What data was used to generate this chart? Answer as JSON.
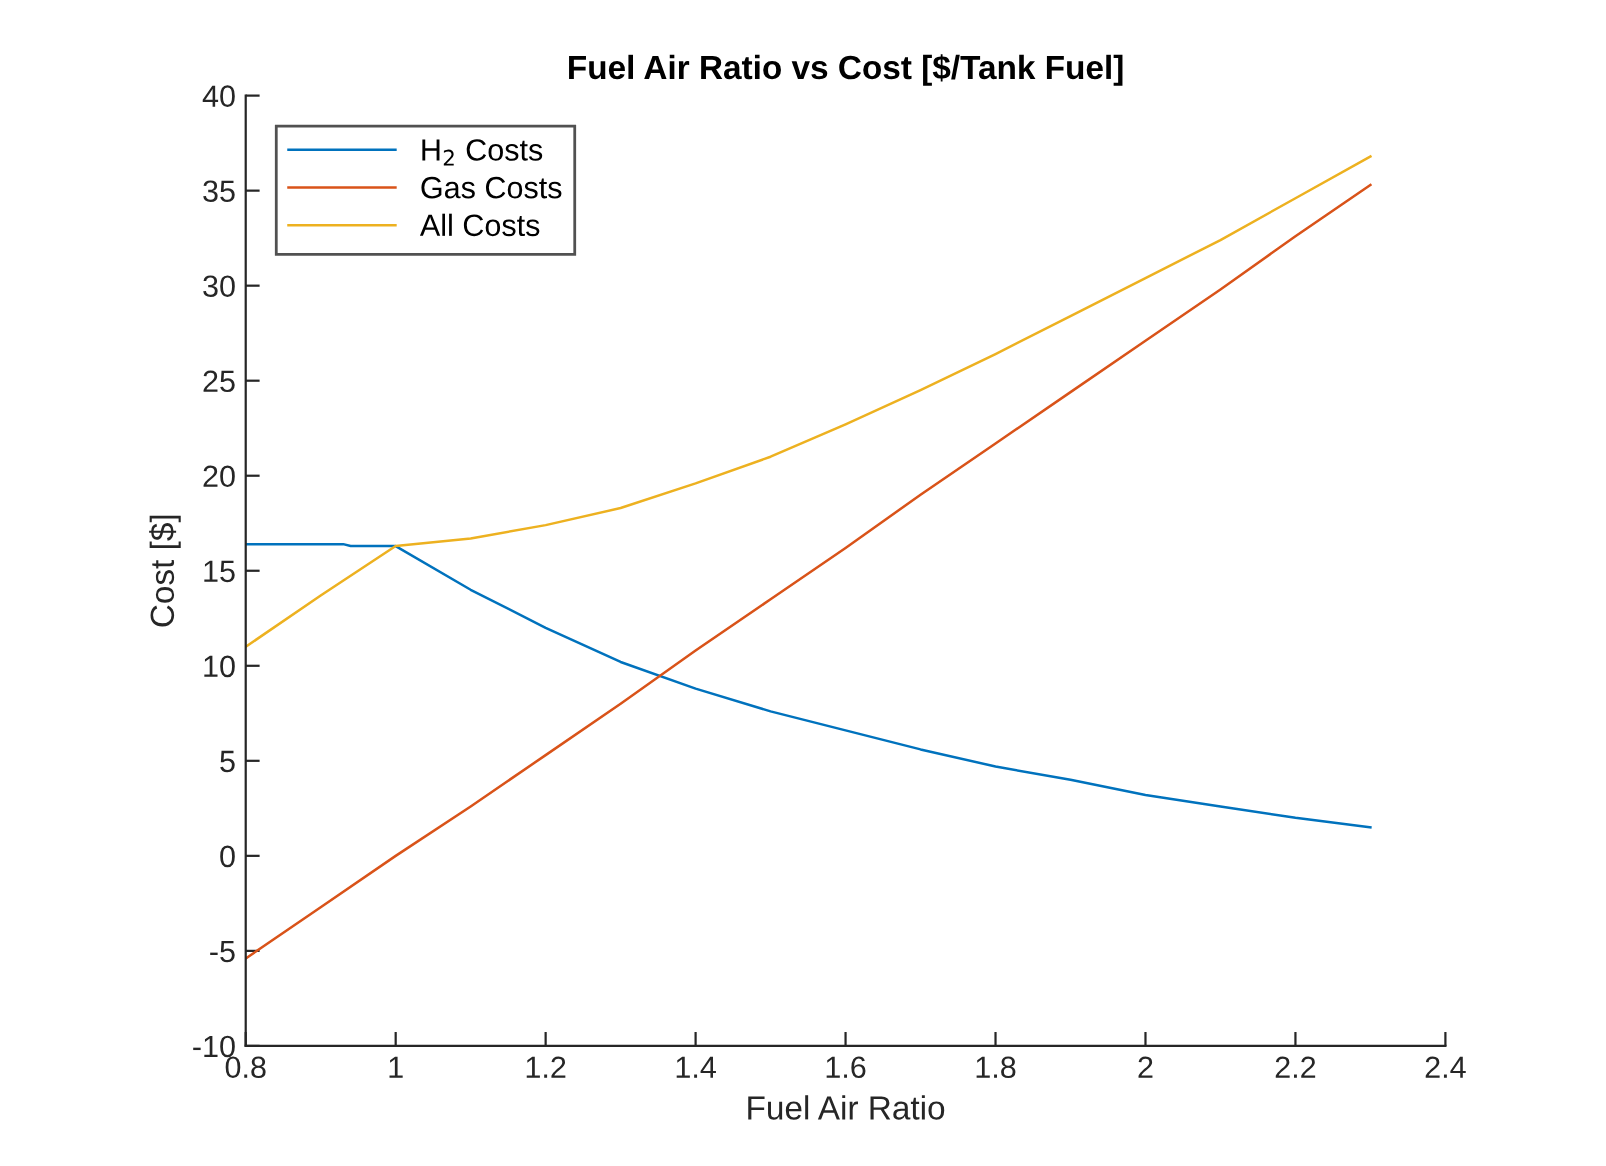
{
  "chart_data": {
    "type": "line",
    "title": "Fuel Air Ratio vs Cost [$/Tank Fuel]",
    "xlabel": "Fuel Air Ratio",
    "ylabel": "Cost [$]",
    "xlim": [
      0.8,
      2.4
    ],
    "xticks": [
      0.8,
      1,
      1.2,
      1.4,
      1.6,
      1.8,
      2,
      2.2,
      2.4
    ],
    "ylim": [
      -10,
      40
    ],
    "yticks": [
      -10,
      -5,
      0,
      5,
      10,
      15,
      20,
      25,
      30,
      35,
      40
    ],
    "grid": false,
    "legend": "top left",
    "marker": "none",
    "line_style": "solid",
    "series": [
      {
        "name": "H$_{2}$ Costs",
        "color": "#0072bd",
        "x": [
          0.8,
          0.93,
          0.94,
          1.0,
          1.1,
          1.2,
          1.3,
          1.4,
          1.5,
          1.6,
          1.7,
          1.8,
          1.9,
          2.0,
          2.1,
          2.2,
          2.3
        ],
        "values": [
          16.4,
          16.4,
          16.3,
          16.3,
          14.0,
          12.0,
          10.2,
          8.8,
          7.6,
          6.6,
          5.6,
          4.7,
          4.0,
          3.2,
          2.6,
          2.0,
          1.5
        ]
      },
      {
        "name": "Gas Costs",
        "color": "#d95319",
        "x": [
          0.8,
          0.9,
          1.0,
          1.1,
          1.2,
          1.3,
          1.4,
          1.5,
          1.6,
          1.7,
          1.8,
          1.9,
          2.0,
          2.1,
          2.2,
          2.3
        ],
        "values": [
          -5.4,
          -2.7,
          0,
          2.6,
          5.3,
          8.0,
          10.8,
          13.5,
          16.2,
          19.0,
          21.7,
          24.4,
          27.1,
          29.8,
          32.6,
          35.3
        ]
      },
      {
        "name": "All Costs",
        "color": "#edb120",
        "x": [
          0.8,
          0.9,
          1.0,
          1.1,
          1.2,
          1.3,
          1.4,
          1.5,
          1.6,
          1.7,
          1.8,
          1.9,
          2.0,
          2.1,
          2.2,
          2.3
        ],
        "values": [
          11.0,
          13.7,
          16.3,
          16.7,
          17.4,
          18.3,
          19.6,
          21.0,
          22.7,
          24.5,
          26.4,
          28.4,
          30.4,
          32.4,
          34.6,
          36.8
        ]
      }
    ]
  }
}
